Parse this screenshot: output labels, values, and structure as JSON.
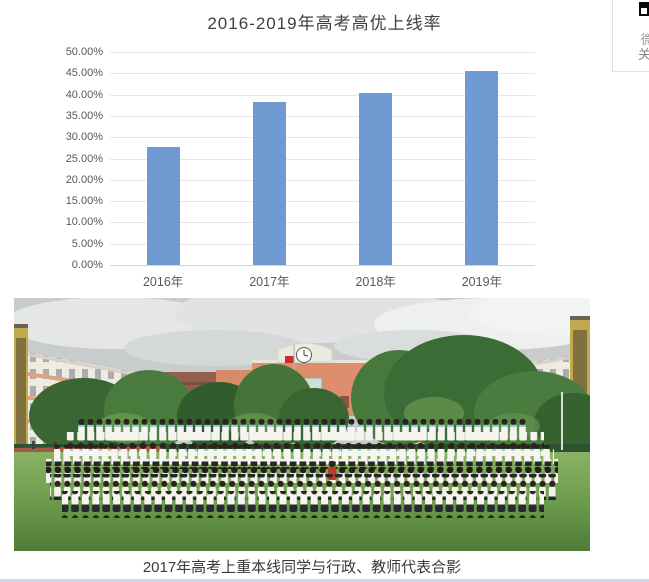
{
  "side_widget": {
    "icon": "qr-code-icon",
    "line1": "微",
    "line2": "关"
  },
  "chart_data": {
    "type": "bar",
    "title": "2016-2019年高考高优上线率",
    "categories": [
      "2016年",
      "2017年",
      "2018年",
      "2019年"
    ],
    "values": [
      27.6,
      38.2,
      40.3,
      45.5
    ],
    "value_unit": "%",
    "ylim": [
      0,
      50
    ],
    "ytick_step": 5,
    "ytick_labels": [
      "0.00%",
      "5.00%",
      "10.00%",
      "15.00%",
      "20.00%",
      "25.00%",
      "30.00%",
      "35.00%",
      "40.00%",
      "45.00%",
      "50.00%"
    ],
    "xlabel": "",
    "ylabel": "",
    "grid": true,
    "legend": "none",
    "bar_color": "#6f9ad2",
    "gridline_color": "#e8e8e8",
    "axis_color": "#d4d4d4",
    "label_color": "#595959",
    "title_color": "#404040"
  },
  "photo_caption": "2017年高考上重本线同学与行政、教师代表合影"
}
